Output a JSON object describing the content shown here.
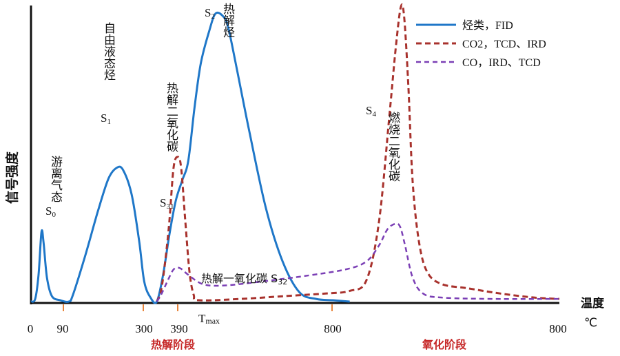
{
  "chart_data": {
    "type": "line",
    "title": "",
    "ylabel": "信号强度",
    "xlabel_line1": "温度",
    "xlabel_line2": "℃",
    "x_ticks": [
      "0",
      "90",
      "300",
      "390",
      "800",
      "800"
    ],
    "tmax_label": "T",
    "tmax_sub": "max",
    "stages": [
      {
        "label": "热解阶段",
        "color": "#c62828"
      },
      {
        "label": "氧化阶段",
        "color": "#c62828"
      }
    ],
    "legend": {
      "placement": "top-right",
      "entries": [
        {
          "label": "烃类，FID",
          "color": "#1f77c8",
          "style": "solid"
        },
        {
          "label": "CO2，TCD、IRD",
          "color": "#a8322d",
          "style": "dashed"
        },
        {
          "label": "CO，IRD、TCD",
          "color": "#7b3fb5",
          "style": "dashed"
        }
      ]
    },
    "series": [
      {
        "name": "烃类，FID",
        "color": "#1f77c8",
        "points": [
          [
            0,
            0
          ],
          [
            10,
            0.02
          ],
          [
            18,
            0.2
          ],
          [
            25,
            0.52
          ],
          [
            30,
            0.44
          ],
          [
            38,
            0.18
          ],
          [
            50,
            0.04
          ],
          [
            70,
            0.01
          ],
          [
            90,
            0
          ],
          [
            100,
            0.05
          ],
          [
            130,
            0.35
          ],
          [
            160,
            0.68
          ],
          [
            185,
            0.92
          ],
          [
            205,
            1.0
          ],
          [
            220,
            0.98
          ],
          [
            240,
            0.8
          ],
          [
            258,
            0.45
          ],
          [
            270,
            0.15
          ],
          [
            285,
            0.03
          ],
          [
            300,
            0
          ],
          [
            315,
            0.2
          ],
          [
            330,
            0.5
          ],
          [
            345,
            0.75
          ],
          [
            360,
            0.9
          ],
          [
            375,
            1.05
          ],
          [
            390,
            1.45
          ],
          [
            405,
            1.78
          ],
          [
            425,
            2.02
          ],
          [
            440,
            2.15
          ],
          [
            458,
            2.13
          ],
          [
            470,
            2.05
          ],
          [
            490,
            1.75
          ],
          [
            520,
            1.28
          ],
          [
            560,
            0.7
          ],
          [
            600,
            0.3
          ],
          [
            640,
            0.07
          ],
          [
            680,
            0.02
          ],
          [
            720,
            0.01
          ],
          [
            760,
            0
          ]
        ]
      },
      {
        "name": "CO2，TCD、IRD",
        "color": "#a8322d",
        "points": [
          [
            300,
            0
          ],
          [
            310,
            0.08
          ],
          [
            320,
            0.3
          ],
          [
            330,
            0.6
          ],
          [
            340,
            1.0
          ],
          [
            350,
            1.08
          ],
          [
            358,
            1.0
          ],
          [
            368,
            0.6
          ],
          [
            378,
            0.22
          ],
          [
            388,
            0.05
          ],
          [
            400,
            0.01
          ],
          [
            500,
            0.02
          ],
          [
            600,
            0.04
          ],
          [
            700,
            0.06
          ],
          [
            760,
            0.08
          ],
          [
            800,
            0.16
          ],
          [
            830,
            0.6
          ],
          [
            855,
            1.4
          ],
          [
            870,
            1.9
          ],
          [
            882,
            2.2
          ],
          [
            890,
            2.12
          ],
          [
            900,
            1.6
          ],
          [
            910,
            0.9
          ],
          [
            925,
            0.45
          ],
          [
            945,
            0.22
          ],
          [
            980,
            0.13
          ],
          [
            1040,
            0.1
          ],
          [
            1120,
            0.06
          ],
          [
            1200,
            0.03
          ],
          [
            1260,
            0.02
          ]
        ]
      },
      {
        "name": "CO，IRD、TCD",
        "color": "#7b3fb5",
        "points": [
          [
            300,
            0
          ],
          [
            310,
            0.05
          ],
          [
            325,
            0.15
          ],
          [
            340,
            0.24
          ],
          [
            355,
            0.25
          ],
          [
            375,
            0.2
          ],
          [
            410,
            0.13
          ],
          [
            460,
            0.12
          ],
          [
            550,
            0.15
          ],
          [
            650,
            0.19
          ],
          [
            750,
            0.24
          ],
          [
            800,
            0.3
          ],
          [
            830,
            0.42
          ],
          [
            850,
            0.54
          ],
          [
            868,
            0.58
          ],
          [
            880,
            0.56
          ],
          [
            892,
            0.42
          ],
          [
            910,
            0.18
          ],
          [
            935,
            0.06
          ],
          [
            980,
            0.03
          ],
          [
            1100,
            0.02
          ],
          [
            1260,
            0.02
          ]
        ]
      }
    ],
    "annotations": [
      {
        "text": "S",
        "sub": "0"
      },
      {
        "text": "S",
        "sub": "1"
      },
      {
        "text": "S",
        "sub": "2"
      },
      {
        "text": "S",
        "sub": "31"
      },
      {
        "text": "S",
        "sub": "4"
      },
      {
        "text": "游离气态"
      },
      {
        "text": "自由液态烃"
      },
      {
        "text": "热解烃"
      },
      {
        "text": "热解二氧化碳"
      },
      {
        "text": "燃烧二氧化碳"
      },
      {
        "text": "热解一氧化碳  S",
        "sub": "32"
      }
    ]
  }
}
